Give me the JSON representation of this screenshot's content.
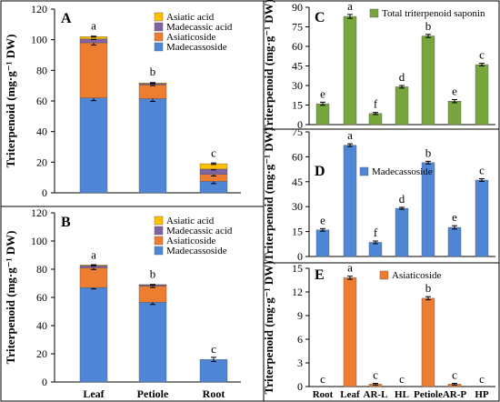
{
  "chart_data": [
    {
      "panel_label": "A",
      "type": "bar",
      "stacked": true,
      "ylabel": "Triterpenoid",
      "yunit": "(mg·g⁻¹ DW)",
      "ylim": [
        0,
        120
      ],
      "yticks": [
        0,
        20,
        40,
        60,
        80,
        100,
        120
      ],
      "categories": [
        "Leaf",
        "Petiole",
        "Root"
      ],
      "tick_labels_shown": false,
      "grid": false,
      "legend": "top-right",
      "series": [
        {
          "name": "Madecassoside",
          "color": "#4f86d6",
          "values": [
            62,
            61.5,
            7.5
          ],
          "errors": [
            1.8,
            1.8,
            1.5
          ]
        },
        {
          "name": "Asiaticoside",
          "color": "#ed7d31",
          "values": [
            36,
            9,
            4.5
          ],
          "errors": [
            1.5,
            0.5,
            1.0
          ]
        },
        {
          "name": "Madecassic acid",
          "color": "#8064a2",
          "values": [
            2.5,
            0.8,
            3.5
          ],
          "errors": [
            0.4,
            0.2,
            0.5
          ]
        },
        {
          "name": "Asiatic acid",
          "color": "#ffc000",
          "values": [
            1.5,
            0.5,
            3.5
          ],
          "errors": [
            0.3,
            0.2,
            0.5
          ]
        }
      ],
      "letters": [
        "a",
        "b",
        "c"
      ]
    },
    {
      "panel_label": "B",
      "type": "bar",
      "stacked": true,
      "ylabel": "Triterpenoid",
      "yunit": "(mg·g⁻¹ DW)",
      "ylim": [
        0,
        120
      ],
      "yticks": [
        0,
        20,
        40,
        60,
        80,
        100,
        120
      ],
      "categories": [
        "Leaf",
        "Petiole",
        "Root"
      ],
      "tick_labels_shown": true,
      "grid": false,
      "legend": "top-right",
      "series": [
        {
          "name": "Madecassoside",
          "color": "#4f86d6",
          "values": [
            67,
            56.5,
            16
          ],
          "errors": [
            1.0,
            1.5,
            1.5
          ]
        },
        {
          "name": "Asiaticoside",
          "color": "#ed7d31",
          "values": [
            14,
            11.5,
            0
          ],
          "errors": [
            1.2,
            1.0,
            0
          ]
        },
        {
          "name": "Madecassic acid",
          "color": "#8064a2",
          "values": [
            1.5,
            0.8,
            0
          ],
          "errors": [
            0.3,
            0.2,
            0
          ]
        },
        {
          "name": "Asiatic acid",
          "color": "#ffc000",
          "values": [
            0.5,
            0.3,
            0
          ],
          "errors": [
            0.2,
            0.1,
            0
          ]
        }
      ],
      "letters": [
        "a",
        "b",
        "c"
      ]
    },
    {
      "panel_label": "C",
      "type": "bar",
      "ylabel": "Triterpenoid",
      "yunit": "(mg·g⁻¹ DW)",
      "ylim": [
        0,
        90
      ],
      "yticks": [
        0,
        15,
        30,
        45,
        60,
        75,
        90
      ],
      "categories": [
        "Root",
        "Leaf",
        "AR-L",
        "HL",
        "Petiole",
        "AR-P",
        "HP"
      ],
      "tick_labels_shown": false,
      "grid": false,
      "legend": "top-right",
      "series": [
        {
          "name": "Total triterpenoid  saponin",
          "color": "#77a73c",
          "values": [
            16,
            83,
            8.5,
            29,
            68,
            18,
            46
          ],
          "errors": [
            1.2,
            1.5,
            0.8,
            1.0,
            1.2,
            1.2,
            1.0
          ]
        }
      ],
      "letters": [
        "e",
        "a",
        "f",
        "d",
        "b",
        "e",
        "c"
      ]
    },
    {
      "panel_label": "D",
      "type": "bar",
      "ylabel": "Triterpenoid",
      "yunit": "(mg·g⁻¹ DW)",
      "ylim": [
        0,
        75
      ],
      "yticks": [
        0,
        15,
        30,
        45,
        60,
        75
      ],
      "categories": [
        "Root",
        "Leaf",
        "AR-L",
        "HL",
        "Petiole",
        "AR-P",
        "HP"
      ],
      "tick_labels_shown": false,
      "grid": false,
      "legend": "top-right",
      "series": [
        {
          "name": "Madecassoside",
          "color": "#4f86d6",
          "values": [
            16,
            67,
            8.5,
            29,
            56.5,
            17.5,
            46
          ],
          "errors": [
            0.8,
            0.8,
            0.8,
            0.6,
            0.8,
            1.0,
            0.8
          ]
        }
      ],
      "letters": [
        "e",
        "a",
        "f",
        "d",
        "b",
        "e",
        "c"
      ]
    },
    {
      "panel_label": "E",
      "type": "bar",
      "ylabel": "Triterpenoid",
      "yunit": "(mg·g⁻¹ DW)",
      "ylim": [
        0,
        15
      ],
      "yticks": [
        0,
        3,
        6,
        9,
        12,
        15
      ],
      "categories": [
        "Root",
        "Leaf",
        "AR-L",
        "HL",
        "Petiole",
        "AR-P",
        "HP"
      ],
      "tick_labels_shown": true,
      "grid": false,
      "legend": "top-right",
      "series": [
        {
          "name": "Asiaticoside",
          "color": "#ed7d31",
          "values": [
            0,
            13.8,
            0.3,
            0,
            11.2,
            0.3,
            0
          ],
          "errors": [
            0,
            0.2,
            0.1,
            0,
            0.2,
            0.1,
            0
          ]
        }
      ],
      "letters": [
        "c",
        "a",
        "c",
        "c",
        "b",
        "c",
        "c"
      ]
    }
  ]
}
